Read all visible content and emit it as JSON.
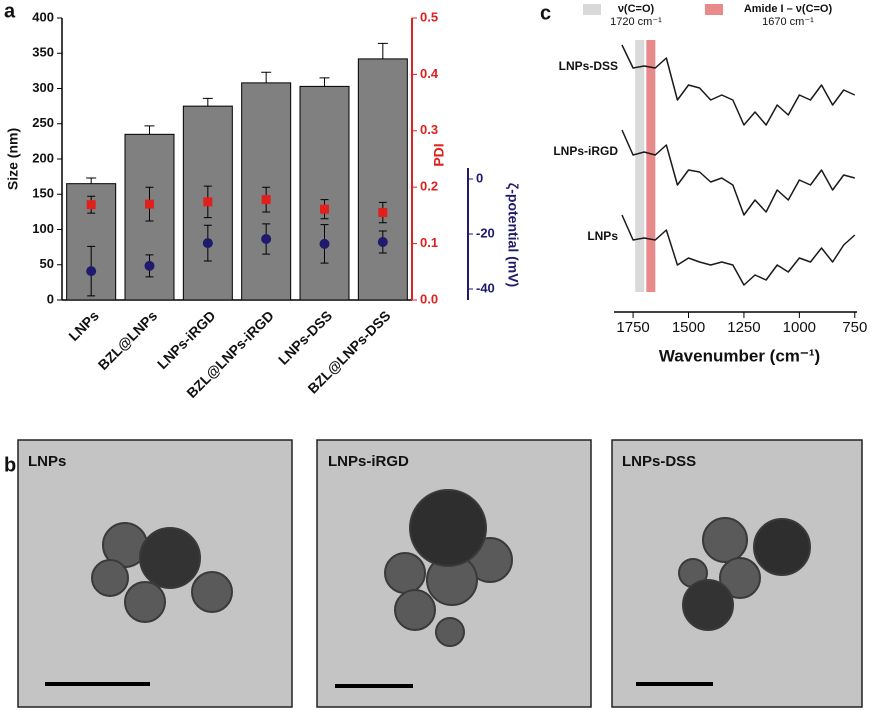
{
  "figure": {
    "panel_labels": [
      "a",
      "b",
      "c"
    ],
    "tem_images": [
      "LNPs",
      "LNPs-iRGD",
      "LNPs-DSS"
    ]
  },
  "chart_data": [
    {
      "type": "bar",
      "categories": [
        "LNPs",
        "BZL@LNPs",
        "LNPs-iRGD",
        "BZL@LNPs-iRGD",
        "LNPs-DSS",
        "BZL@LNPs-DSS"
      ],
      "y_label": "Size (nm)",
      "y2_label": "PDI",
      "y3_label": "ζ-potential (mV)",
      "ylim": [
        0,
        400
      ],
      "yticks": [
        0,
        50,
        100,
        150,
        200,
        250,
        300,
        350,
        400
      ],
      "y2lim": [
        0,
        0.5
      ],
      "y2ticks": [
        {
          "value": 0,
          "label": "0.0"
        },
        0.1,
        0.2,
        0.3,
        0.4,
        0.5
      ],
      "y3lim": [
        -44,
        4
      ],
      "y3ticks": [
        0,
        -20,
        -40
      ],
      "grid": false,
      "series": [
        {
          "type": "bar",
          "axis": "y",
          "color": "#808080",
          "values": [
            165,
            235,
            275,
            308,
            303,
            342
          ],
          "errors": [
            8,
            12,
            11,
            15,
            12,
            22
          ]
        },
        {
          "type": "scatter",
          "marker": "square",
          "axis": "y2",
          "color": "#e0201c",
          "values": [
            0.169,
            0.17,
            0.174,
            0.178,
            0.161,
            0.155
          ],
          "errors": [
            0.015,
            0.03,
            0.028,
            0.022,
            0.017,
            0.018
          ]
        },
        {
          "type": "scatter",
          "marker": "circle",
          "axis": "y3",
          "color": "#1f1a6b",
          "values": [
            -33.5,
            -31.6,
            -23.3,
            -21.8,
            -23.6,
            -22.9
          ],
          "errors": [
            9,
            4,
            6.5,
            5.5,
            7,
            4
          ]
        }
      ]
    },
    {
      "type": "line",
      "x_label": "Wavenumber (cm⁻¹)",
      "x": [
        1800,
        1750,
        1700,
        1650,
        1600,
        1550,
        1500,
        1450,
        1400,
        1350,
        1300,
        1250,
        1200,
        1150,
        1100,
        1050,
        1000,
        950,
        900,
        850,
        800,
        750
      ],
      "xlim": [
        1800,
        740
      ],
      "xticks": [
        1750,
        1500,
        1250,
        1000,
        750
      ],
      "ylim": [
        -10,
        260
      ],
      "annotations": [
        {
          "text": "ν(C=O)",
          "subtext": "1720 cm⁻¹",
          "x": 1720,
          "color": "#d9d9d9"
        },
        {
          "text": "Amide I – ν(C=O)",
          "subtext": "1670 cm⁻¹",
          "x": 1670,
          "color": "#e88a8a"
        }
      ],
      "series": [
        {
          "name": "LNPs-DSS",
          "color": "#1a1a1a",
          "values": [
            255,
            232,
            234,
            232,
            242,
            200,
            215,
            212,
            200,
            205,
            200,
            175,
            188,
            175,
            195,
            185,
            205,
            200,
            215,
            195,
            210,
            205
          ]
        },
        {
          "name": "LNPs-iRGD",
          "color": "#1a1a1a",
          "values": [
            170,
            145,
            148,
            145,
            155,
            115,
            130,
            128,
            118,
            122,
            115,
            85,
            100,
            88,
            110,
            100,
            120,
            115,
            130,
            110,
            125,
            122
          ]
        },
        {
          "name": "LNPs",
          "color": "#1a1a1a",
          "values": [
            85,
            60,
            62,
            60,
            70,
            35,
            42,
            38,
            35,
            38,
            35,
            15,
            25,
            20,
            35,
            28,
            42,
            38,
            52,
            38,
            55,
            65
          ]
        }
      ]
    }
  ]
}
